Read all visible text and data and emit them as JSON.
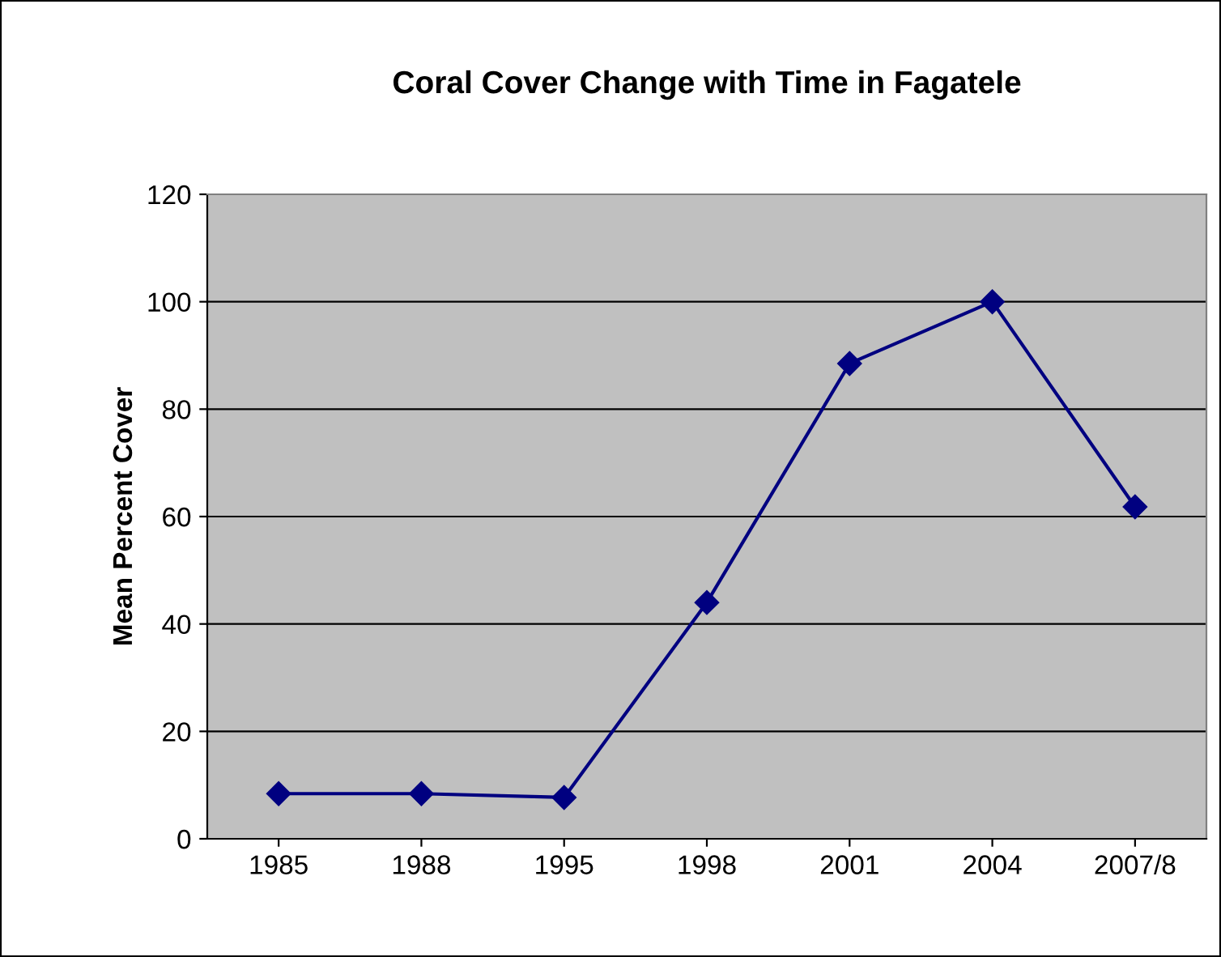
{
  "chart_data": {
    "type": "line",
    "title": "Coral Cover Change with Time in Fagatele",
    "ylabel": "Mean Percent Cover",
    "categories": [
      "1985",
      "1988",
      "1995",
      "1998",
      "2001",
      "2004",
      "2007/8"
    ],
    "series": [
      {
        "color": "#000080",
        "values": [
          8.4,
          8.4,
          7.7,
          44,
          88.5,
          100,
          61.8
        ]
      }
    ],
    "ylim": [
      0,
      120
    ],
    "yticks": [
      0,
      20,
      40,
      60,
      80,
      100,
      120
    ],
    "grid": "y",
    "marker": "diamond",
    "line_style": "solid",
    "legend": false
  }
}
